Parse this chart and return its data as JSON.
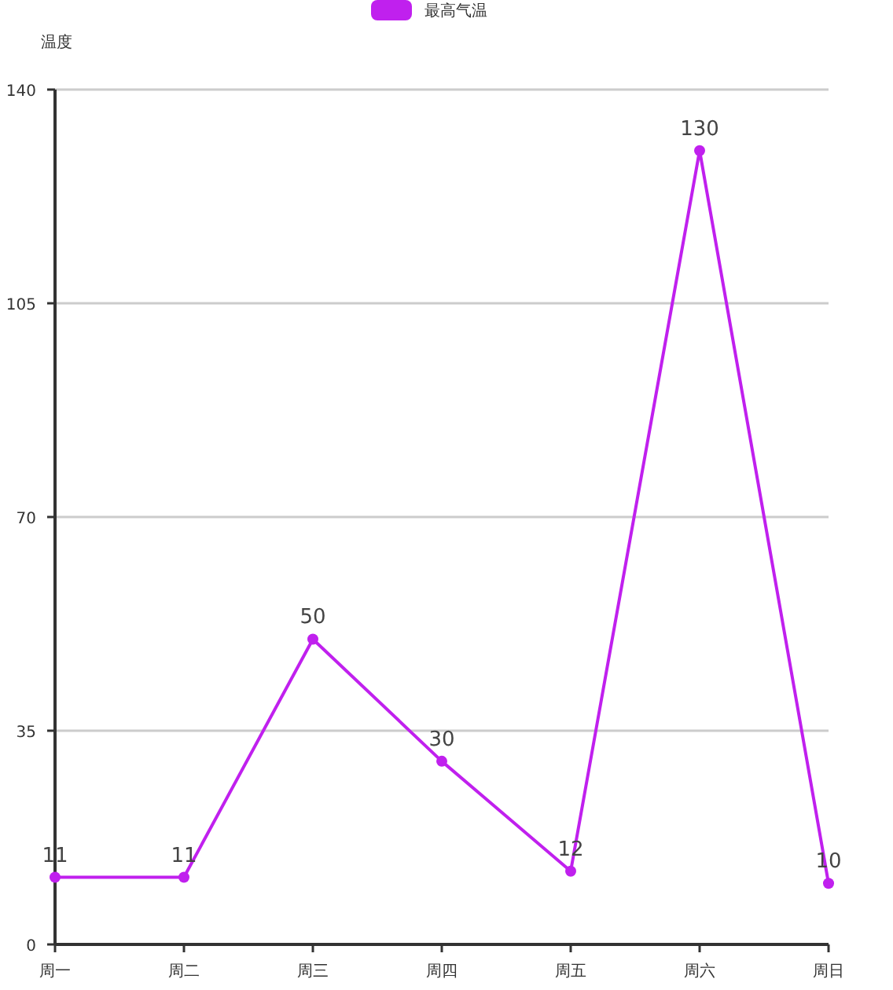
{
  "chart_data": {
    "type": "line",
    "ylabel": "温度",
    "categories": [
      "周一",
      "周二",
      "周三",
      "周四",
      "周五",
      "周六",
      "周日"
    ],
    "series": [
      {
        "name": "最高气温",
        "color": "#c020ee",
        "values": [
          11,
          11,
          50,
          30,
          12,
          130,
          10
        ]
      }
    ],
    "ylim": [
      0,
      140
    ],
    "yticks": [
      0,
      35,
      70,
      105,
      140
    ],
    "grid": "y",
    "legend": "top",
    "marker": "circle",
    "data_labels": true,
    "line_style": "solid"
  }
}
